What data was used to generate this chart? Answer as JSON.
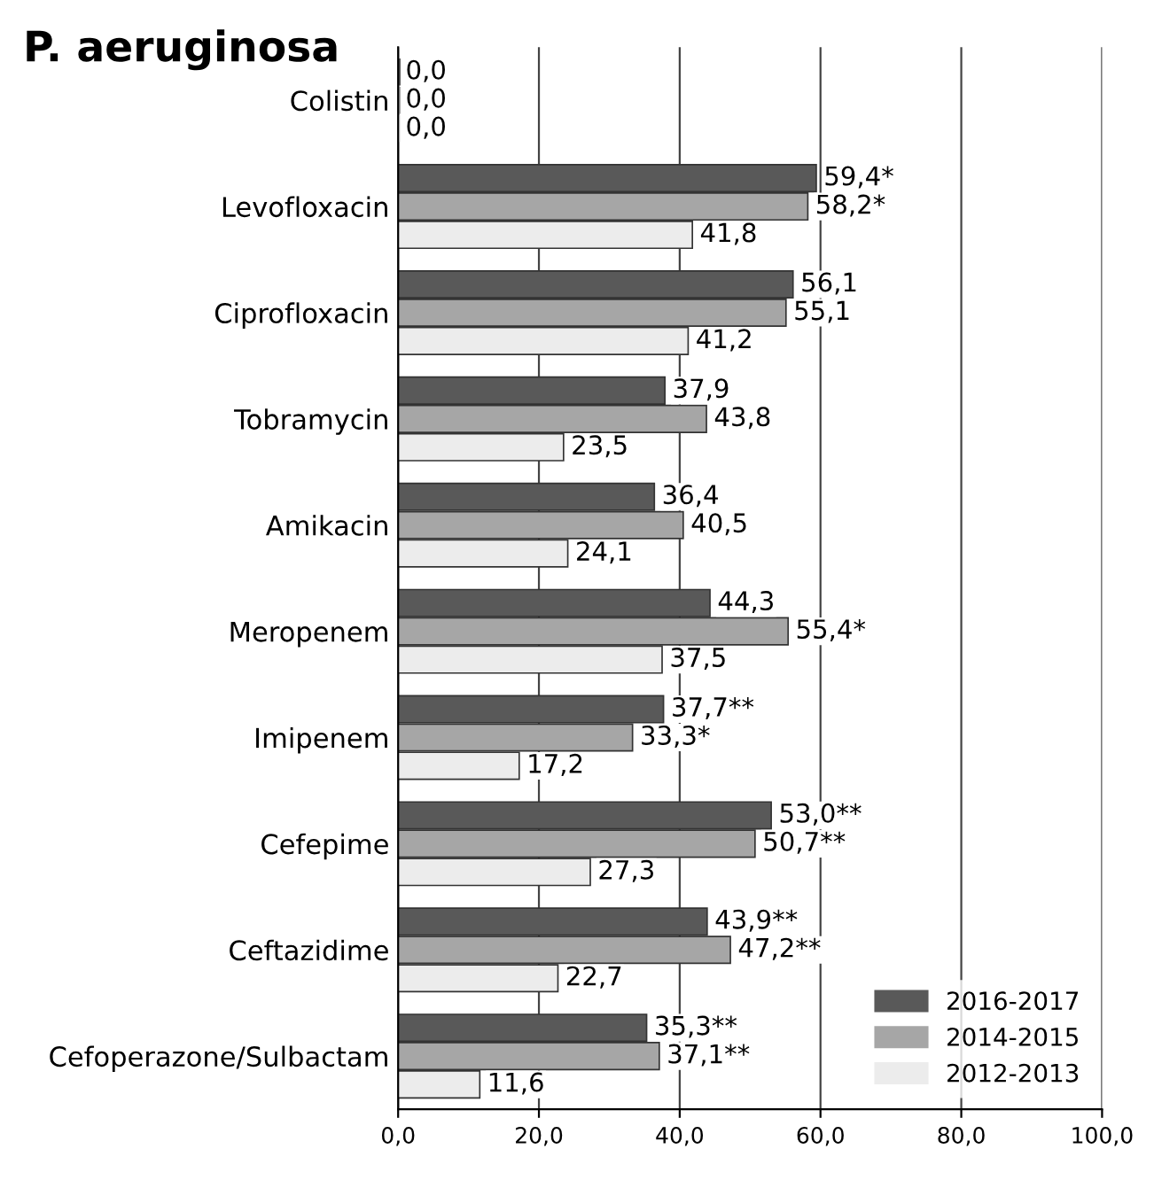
{
  "chart_data": {
    "type": "bar",
    "orientation": "horizontal",
    "title": "P. aeruginosa",
    "categories": [
      "Colistin",
      "Levofloxacin",
      "Ciprofloxacin",
      "Tobramycin",
      "Amikacin",
      "Meropenem",
      "Imipenem",
      "Cefepime",
      "Ceftazidime",
      "Cefoperazone/Sulbactam"
    ],
    "series": [
      {
        "name": "2016-2017",
        "color": "#595959",
        "values": [
          0.0,
          59.4,
          56.1,
          37.9,
          36.4,
          44.3,
          37.7,
          53.0,
          43.9,
          35.3
        ],
        "value_labels": [
          "0,0",
          "59,4*",
          "56,1",
          "37,9",
          "36,4",
          "44,3",
          "37,7**",
          "53,0**",
          "43,9**",
          "35,3**"
        ]
      },
      {
        "name": "2014-2015",
        "color": "#a6a6a6",
        "values": [
          0.0,
          58.2,
          55.1,
          43.8,
          40.5,
          55.4,
          33.3,
          50.7,
          47.2,
          37.1
        ],
        "value_labels": [
          "0,0",
          "58,2*",
          "55,1",
          "43,8",
          "40,5",
          "55,4*",
          "33,3*",
          "50,7**",
          "47,2**",
          "37,1**"
        ]
      },
      {
        "name": "2012-2013",
        "color": "#ececec",
        "values": [
          0.0,
          41.8,
          41.2,
          23.5,
          24.1,
          37.5,
          17.2,
          27.3,
          22.7,
          11.6
        ],
        "value_labels": [
          "0,0",
          "41,8",
          "41,2",
          "23,5",
          "24,1",
          "37,5",
          "17,2",
          "27,3",
          "22,7",
          "11,6"
        ]
      }
    ],
    "xlim": [
      0,
      100
    ],
    "xticks": [
      {
        "value": 0,
        "label": "0,0"
      },
      {
        "value": 20,
        "label": "20,0"
      },
      {
        "value": 40,
        "label": "40,0"
      },
      {
        "value": 60,
        "label": "60,0"
      },
      {
        "value": 80,
        "label": "80,0"
      },
      {
        "value": 100,
        "label": "100,0"
      }
    ],
    "grid": "x",
    "legend": "bottom right"
  }
}
